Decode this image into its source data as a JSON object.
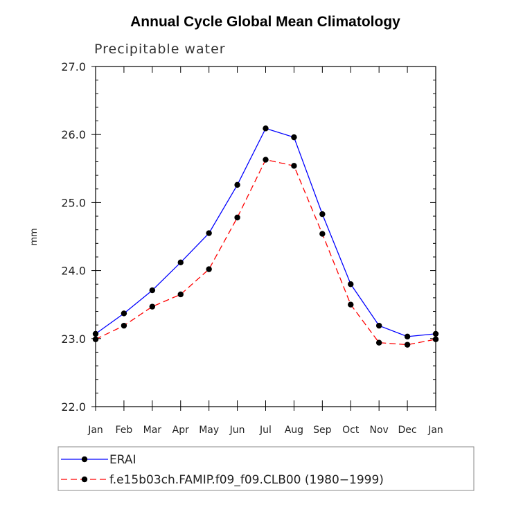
{
  "chart_data": {
    "type": "line",
    "title": "Annual Cycle Global Mean Climatology",
    "subtitle": "Precipitable water",
    "xlabel": "",
    "ylabel": "mm",
    "ylim": [
      22.0,
      27.0
    ],
    "yticks": [
      "22.0",
      "23.0",
      "24.0",
      "25.0",
      "26.0",
      "27.0"
    ],
    "categories": [
      "Jan",
      "Feb",
      "Mar",
      "Apr",
      "May",
      "Jun",
      "Jul",
      "Aug",
      "Sep",
      "Oct",
      "Nov",
      "Dec",
      "Jan"
    ],
    "series": [
      {
        "name": "ERAI",
        "color": "#0000ff",
        "dash": "solid",
        "values": [
          23.07,
          23.37,
          23.71,
          24.12,
          24.55,
          25.26,
          26.09,
          25.96,
          24.83,
          23.8,
          23.19,
          23.03,
          23.07
        ]
      },
      {
        "name": "f.e15b03ch.FAMIP.f09_f09.CLB00 (1980−1999)",
        "color": "#ff0000",
        "dash": "dashed",
        "values": [
          22.99,
          23.19,
          23.47,
          23.65,
          24.02,
          24.78,
          25.63,
          25.54,
          24.54,
          23.5,
          22.94,
          22.91,
          22.99
        ]
      }
    ],
    "grid": false,
    "legend_position": "bottom"
  }
}
